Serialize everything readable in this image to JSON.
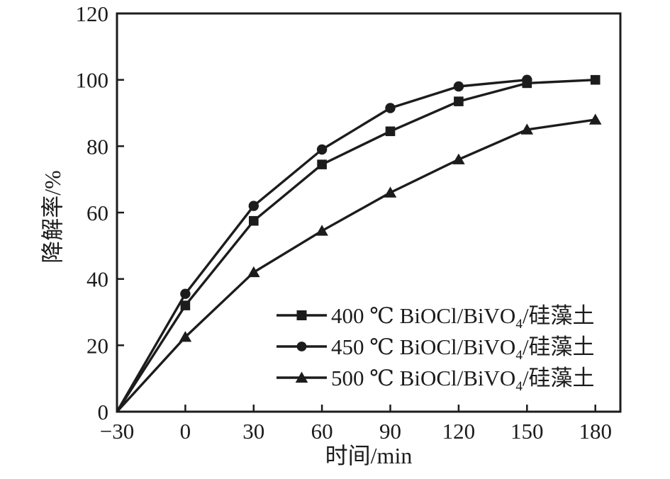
{
  "chart_data": {
    "type": "line",
    "title": "",
    "xlabel": "时间/min",
    "ylabel": "降解率/%",
    "xlim": [
      -30,
      191
    ],
    "ylim": [
      0,
      120
    ],
    "grid": false,
    "legend_position": "inside-bottom-right",
    "background": "#ffffff",
    "axis_color": "#1c1c1c",
    "xticks": [
      {
        "value": -30,
        "label": "−30"
      },
      {
        "value": 0,
        "label": "0"
      },
      {
        "value": 30,
        "label": "30"
      },
      {
        "value": 60,
        "label": "60"
      },
      {
        "value": 90,
        "label": "90"
      },
      {
        "value": 120,
        "label": "120"
      },
      {
        "value": 150,
        "label": "150"
      },
      {
        "value": 180,
        "label": "180"
      }
    ],
    "yticks": [
      {
        "value": 0,
        "label": "0"
      },
      {
        "value": 20,
        "label": "20"
      },
      {
        "value": 40,
        "label": "40"
      },
      {
        "value": 60,
        "label": "60"
      },
      {
        "value": 80,
        "label": "80"
      },
      {
        "value": 100,
        "label": "100"
      },
      {
        "value": 120,
        "label": "120"
      }
    ],
    "series": [
      {
        "name": "400 ℃ BiOCl/BiVO4/硅藻土",
        "marker": "square",
        "color": "#1c1c1c",
        "markers_from_index": 1,
        "legend": {
          "pre": "400 ℃ BiOCl/BiVO",
          "sub": "4",
          "post": "/硅藻土"
        },
        "points": [
          [
            -30,
            0
          ],
          [
            0,
            32
          ],
          [
            30,
            57.5
          ],
          [
            60,
            74.5
          ],
          [
            90,
            84.5
          ],
          [
            120,
            93.5
          ],
          [
            150,
            99
          ],
          [
            180,
            100
          ]
        ]
      },
      {
        "name": "450 ℃ BiOCl/BiVO4/硅藻土",
        "marker": "circle",
        "color": "#1c1c1c",
        "markers_from_index": 1,
        "legend": {
          "pre": "450 ℃ BiOCl/BiVO",
          "sub": "4",
          "post": "/硅藻土"
        },
        "points": [
          [
            -30,
            0
          ],
          [
            0,
            35.5
          ],
          [
            30,
            62
          ],
          [
            60,
            79
          ],
          [
            90,
            91.5
          ],
          [
            120,
            98
          ],
          [
            150,
            100
          ]
        ]
      },
      {
        "name": "500 ℃ BiOCl/BiVO4/硅藻土",
        "marker": "triangle",
        "color": "#1c1c1c",
        "markers_from_index": 1,
        "legend": {
          "pre": "500 ℃ BiOCl/BiVO",
          "sub": "4",
          "post": "/硅藻土"
        },
        "points": [
          [
            -30,
            0
          ],
          [
            0,
            22.5
          ],
          [
            30,
            42
          ],
          [
            60,
            54.5
          ],
          [
            90,
            66
          ],
          [
            120,
            76
          ],
          [
            150,
            85
          ],
          [
            180,
            88
          ]
        ]
      }
    ]
  }
}
